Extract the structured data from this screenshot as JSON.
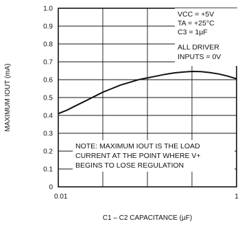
{
  "chart_data": {
    "type": "line",
    "title": "",
    "xlabel": "C1 – C2 CAPACITANCE (µF)",
    "ylabel": "MAXIMUM IOUT (mA)",
    "x_scale": "log",
    "xlim": [
      0.01,
      1
    ],
    "ylim": [
      0,
      1.0
    ],
    "x_tick_labels": [
      "0.01",
      "1"
    ],
    "y_ticks": [
      0,
      0.1,
      0.2,
      0.3,
      0.4,
      0.5,
      0.6,
      0.7,
      0.8,
      0.9,
      1.0
    ],
    "y_tick_labels": [
      "0",
      "0.1",
      "0.2",
      "0.3",
      "0.4",
      "0.5",
      "0.6",
      "0.7",
      "0.8",
      "0.9",
      "1.0"
    ],
    "grid": true,
    "conditions": [
      "VCC = +5V",
      "TA = +25°C",
      "C3 = 1µF",
      "ALL DRIVER",
      "INPUTS = 0V"
    ],
    "note": [
      "NOTE: MAXIMUM IOUT IS THE LOAD",
      "CURRENT AT THE POINT WHERE V+",
      "BEGINS TO LOSE REGULATION"
    ],
    "series": [
      {
        "x": [
          0.01,
          0.0126,
          0.0158,
          0.02,
          0.0251,
          0.0316,
          0.0398,
          0.05,
          0.063,
          0.0794,
          0.1,
          0.126,
          0.158,
          0.2,
          0.251,
          0.316,
          0.398,
          0.5,
          0.63,
          0.794,
          1.0
        ],
        "values": [
          0.41,
          0.43,
          0.455,
          0.48,
          0.505,
          0.53,
          0.55,
          0.57,
          0.585,
          0.6,
          0.61,
          0.62,
          0.63,
          0.638,
          0.643,
          0.646,
          0.645,
          0.64,
          0.632,
          0.62,
          0.605
        ]
      }
    ]
  }
}
